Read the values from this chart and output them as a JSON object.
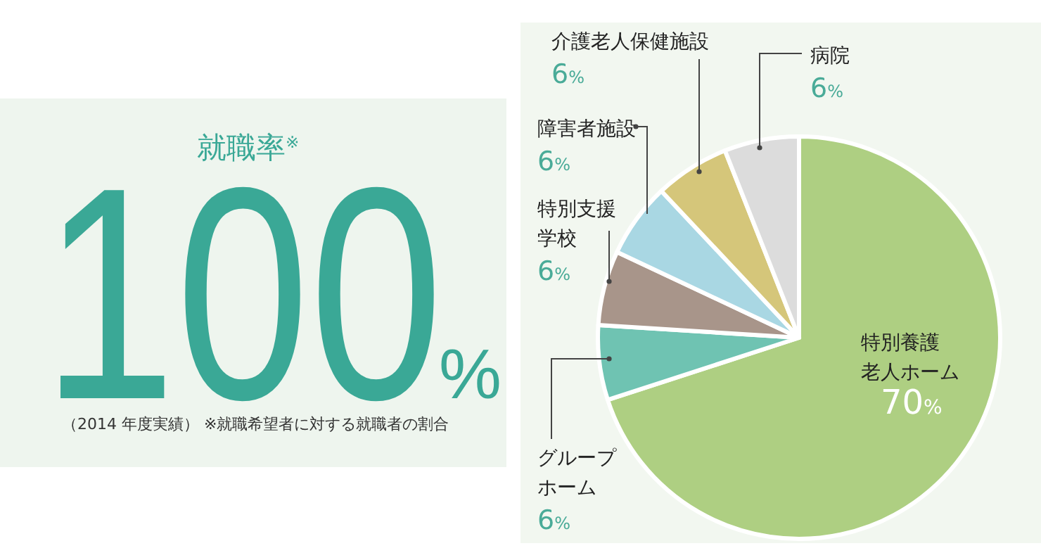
{
  "chart_data": [
    {
      "type": "other",
      "title": "就職率$^{※}$",
      "annotations": [
        "100%",
        "（2014 年度実績） ※就職希望者に対する就職者の割合"
      ]
    },
    {
      "type": "pie",
      "categories": [
        "特別養護老人ホーム",
        "グループホーム",
        "特別支援学校",
        "障害者施設",
        "介護老人保健施設",
        "病院"
      ],
      "values": [
        70,
        6,
        6,
        6,
        6,
        6
      ],
      "colors": [
        "#aecf82",
        "#6fc3b2",
        "#a8958a",
        "#a9d7e3",
        "#d5c67a",
        "#dcdcdc"
      ],
      "value_labels": [
        "70%",
        "6%",
        "6%",
        "6%",
        "6%",
        "6%"
      ]
    }
  ]
}
